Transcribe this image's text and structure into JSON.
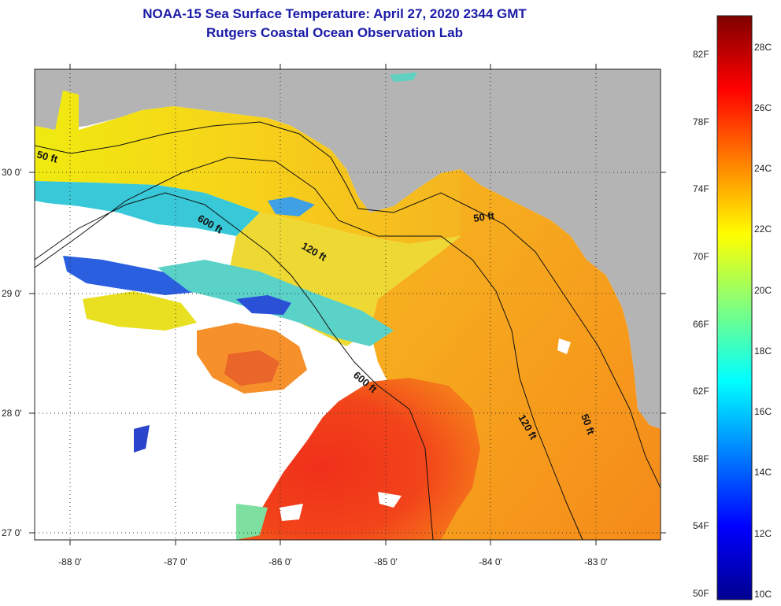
{
  "header": {
    "title_line1": "NOAA-15 Sea Surface Temperature:  April 27, 2020 2344 GMT",
    "title_line2": "Rutgers Coastal Ocean Observation Lab"
  },
  "map": {
    "lon_labels": [
      "-88 0'",
      "-87 0'",
      "-86 0'",
      "-85 0'",
      "-84 0'",
      "-83 0'"
    ],
    "lat_labels": [
      "30 0'",
      "29 0'",
      "28 0'",
      "27 0'"
    ],
    "contour_labels": [
      "50 ft",
      "600 ft",
      "120 ft",
      "50 ft",
      "600 ft",
      "120 ft",
      "50 ft"
    ],
    "land_color": "#b4b4b4",
    "cloud_color": "#ffffff"
  },
  "colorbar": {
    "fahrenheit_labels": [
      "82F",
      "78F",
      "74F",
      "70F",
      "66F",
      "62F",
      "58F",
      "54F",
      "50F"
    ],
    "celsius_labels": [
      "28C",
      "26C",
      "24C",
      "22C",
      "20C",
      "18C",
      "16C",
      "14C",
      "12C",
      "10C"
    ],
    "range_c": [
      10,
      29
    ],
    "colormap": "jet"
  }
}
